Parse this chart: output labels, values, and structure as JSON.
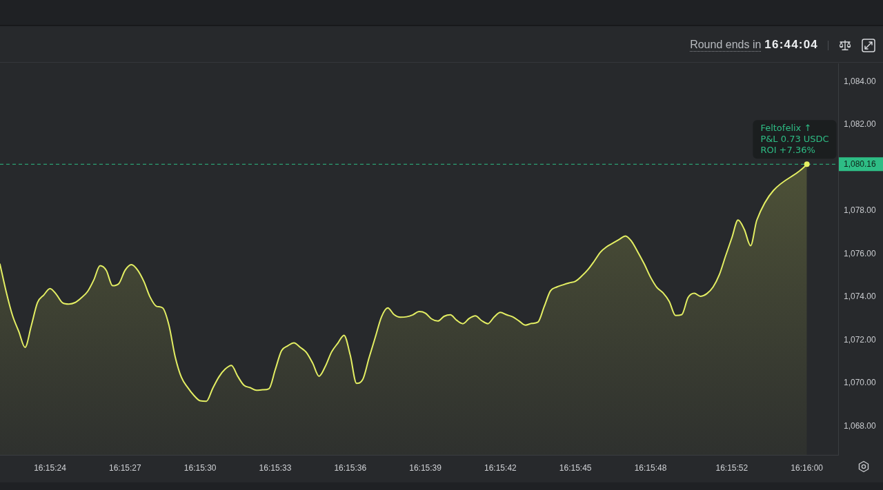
{
  "chart_data": {
    "type": "area",
    "annotations": [
      "Round ends in",
      "16:44:04",
      {
        "text": "Feltofelix ↑\nP&L 0.73 USDC\nROI +7.36%",
        "x": "16:16:00",
        "y": 1080.16
      }
    ],
    "categories": [
      null,
      null,
      null,
      null,
      null,
      null,
      null,
      null,
      "16:15:24",
      null,
      null,
      null,
      null,
      null,
      null,
      null,
      null,
      null,
      null,
      null,
      "16:15:27",
      null,
      null,
      null,
      null,
      null,
      null,
      null,
      null,
      null,
      null,
      null,
      "16:15:30",
      null,
      null,
      null,
      null,
      null,
      null,
      null,
      null,
      null,
      null,
      null,
      "16:15:33",
      null,
      null,
      null,
      null,
      null,
      null,
      null,
      null,
      null,
      null,
      null,
      "16:15:36",
      null,
      null,
      null,
      null,
      null,
      null,
      null,
      null,
      null,
      null,
      null,
      "16:15:39",
      null,
      null,
      null,
      null,
      null,
      null,
      null,
      null,
      null,
      null,
      null,
      "16:15:42",
      null,
      null,
      null,
      null,
      null,
      null,
      null,
      null,
      null,
      null,
      null,
      "16:15:45",
      null,
      null,
      null,
      null,
      null,
      null,
      null,
      null,
      null,
      null,
      null,
      "16:15:48",
      null,
      null,
      null,
      null,
      null,
      null,
      null,
      null,
      null,
      null,
      null,
      null,
      "16:15:52",
      null,
      null,
      null,
      null,
      null,
      null,
      null,
      null,
      null,
      null,
      null,
      "16:16:00",
      null,
      null,
      null,
      null,
      null
    ],
    "values": [
      1075.52,
      1074.23,
      1073.14,
      1072.4,
      1071.66,
      1072.66,
      1073.74,
      1074.09,
      1074.39,
      1074.12,
      1073.73,
      1073.67,
      1073.74,
      1073.96,
      1074.25,
      1074.79,
      1075.45,
      1075.23,
      1074.52,
      1074.62,
      1075.24,
      1075.5,
      1075.25,
      1074.72,
      1073.99,
      1073.57,
      1073.49,
      1072.7,
      1071.23,
      1070.27,
      1069.8,
      1069.43,
      1069.18,
      1069.16,
      1069.75,
      1070.29,
      1070.65,
      1070.82,
      1070.32,
      1069.9,
      1069.79,
      1069.67,
      1069.69,
      1069.74,
      1070.62,
      1071.5,
      1071.73,
      1071.87,
      1071.66,
      1071.42,
      1070.92,
      1070.32,
      1070.77,
      1071.44,
      1071.85,
      1072.22,
      1071.29,
      1069.99,
      1070.17,
      1071.17,
      1072.13,
      1073.08,
      1073.49,
      1073.18,
      1073.06,
      1073.08,
      1073.17,
      1073.32,
      1073.25,
      1072.98,
      1072.88,
      1073.1,
      1073.17,
      1072.92,
      1072.76,
      1073.0,
      1073.12,
      1072.9,
      1072.76,
      1073.07,
      1073.28,
      1073.17,
      1073.07,
      1072.88,
      1072.69,
      1072.77,
      1072.83,
      1073.55,
      1074.28,
      1074.46,
      1074.56,
      1074.65,
      1074.73,
      1074.97,
      1075.27,
      1075.66,
      1076.08,
      1076.33,
      1076.5,
      1076.67,
      1076.83,
      1076.57,
      1076.07,
      1075.53,
      1074.92,
      1074.45,
      1074.19,
      1073.79,
      1073.14,
      1073.18,
      1073.97,
      1074.17,
      1074.03,
      1074.15,
      1074.46,
      1075.03,
      1075.9,
      1076.74,
      1077.57,
      1077.13,
      1076.38,
      1077.57,
      null,
      null,
      null,
      null,
      null,
      null,
      null,
      1080.16,
      null,
      null,
      null,
      null,
      null
    ],
    "color": "#e4ef63",
    "ylim": [
      1066.67,
      1084.84
    ],
    "yticks": [
      {
        "value": 1068,
        "label": "1,068.00"
      },
      {
        "value": 1070,
        "label": "1,070.00"
      },
      {
        "value": 1072,
        "label": "1,072.00"
      },
      {
        "value": 1074,
        "label": "1,074.00"
      },
      {
        "value": 1076,
        "label": "1,076.00"
      },
      {
        "value": 1078,
        "label": "1,078.00"
      },
      {
        "value": 1082,
        "label": "1,082.00"
      },
      {
        "value": 1084,
        "label": "1,084.00"
      }
    ],
    "ref_lines": [
      {
        "axis": "y",
        "value": 1080.16,
        "label": "1,080.16",
        "color": "#2ebd85",
        "line_style": "dashed"
      }
    ]
  }
}
